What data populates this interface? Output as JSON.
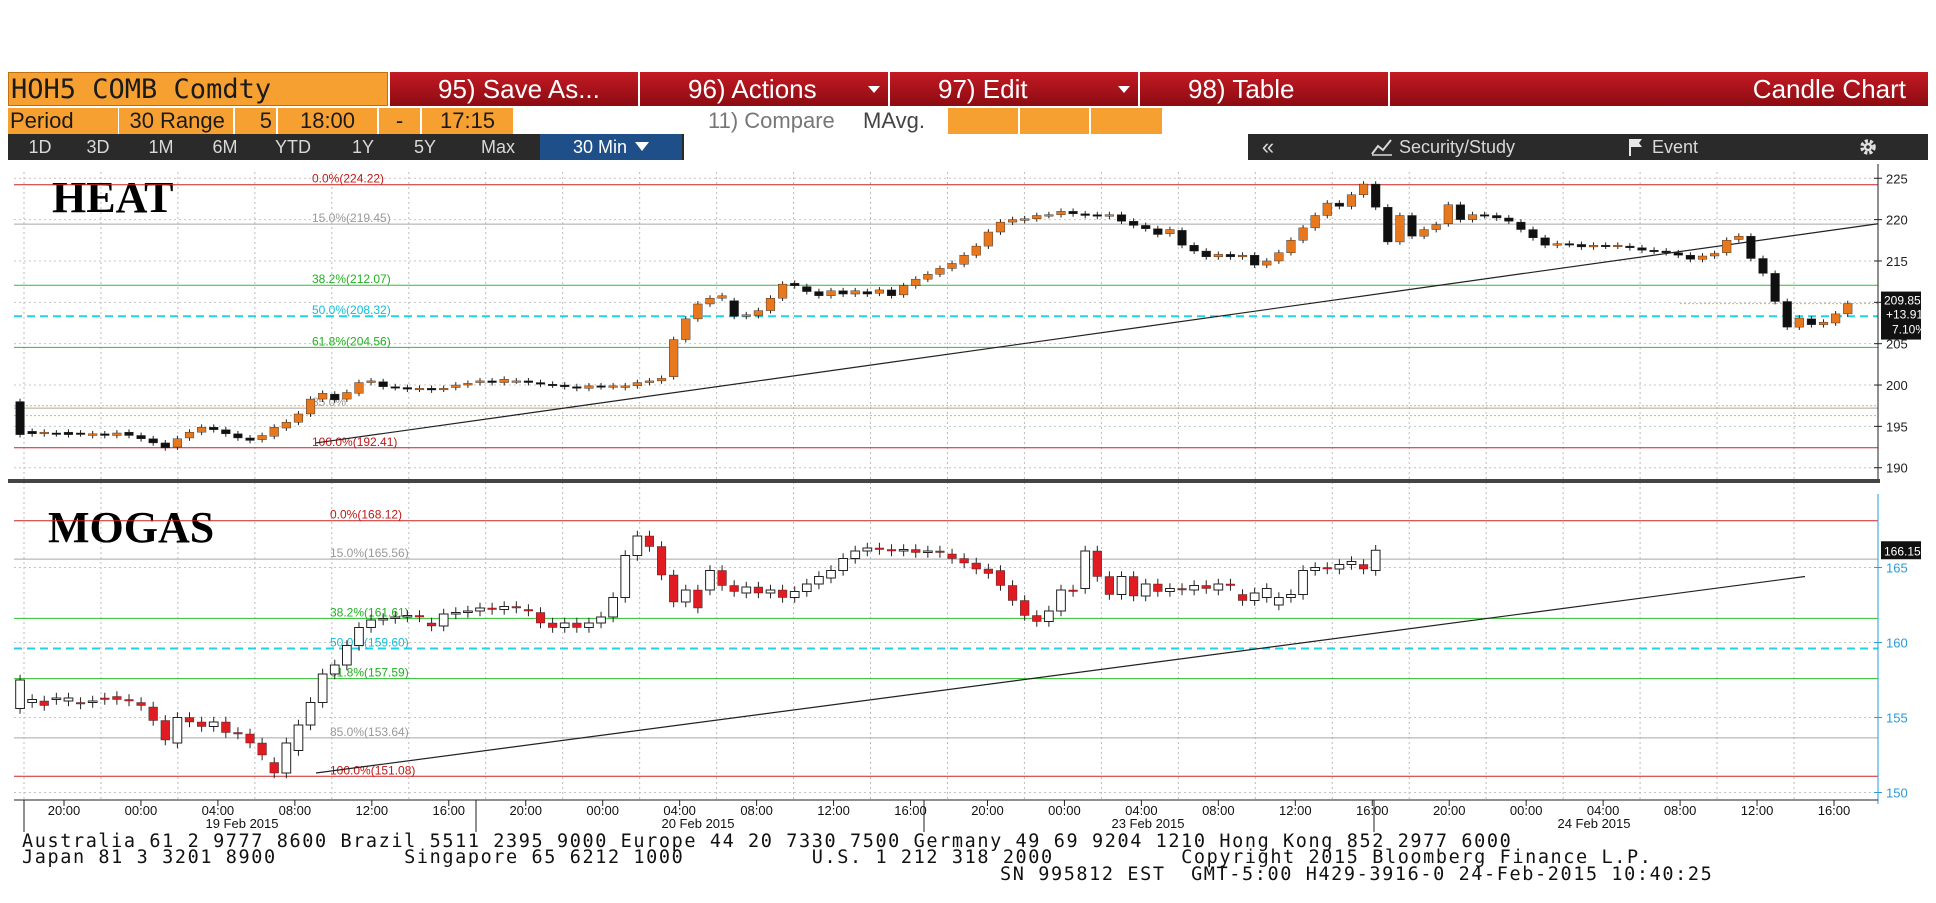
{
  "toolbar": {
    "ticker": "HOH5 COMB Comdty",
    "save_as": "95) Save As...",
    "actions": "96) Actions",
    "edit": "97) Edit",
    "table": "98) Table",
    "chart_type": "Candle Chart"
  },
  "settings": {
    "period_label": "Period",
    "period_value": "30",
    "range_label": "Range",
    "range_value": "5",
    "start_time": "18:00",
    "dash": "-",
    "end_time": "17:15",
    "compare": "11) Compare",
    "mavg": "MAvg."
  },
  "periods": [
    "1D",
    "3D",
    "1M",
    "6M",
    "YTD",
    "1Y",
    "5Y",
    "Max"
  ],
  "interval": "30 Min",
  "right_tools": {
    "collapse": "«",
    "security_study": "Security/Study",
    "event": "Event"
  },
  "colors": {
    "up": "#e8781e",
    "down": "#000000",
    "mogas_down": "#e01b22",
    "fib_mid": "#00c8e0",
    "fib_green": "#00aa00",
    "fib_red": "#cc0000"
  },
  "footer": {
    "line1": "Australia 61 2 9777 8600 Brazil 5511 2395 9000 Europe 44 20 7330 7500 Germany 49 69 9204 1210 Hong Kong 852 2977 6000",
    "line2": "Japan 81 3 3201 8900          Singapore 65 6212 1000          U.S. 1 212 318 2000          Copyright 2015 Bloomberg Finance L.P.",
    "line3": "SN 995812 EST  GMT-5:00 H429-3916-0 24-Feb-2015 10:40:25"
  },
  "chart_data": [
    {
      "type": "candlestick",
      "title": "HEAT",
      "y_ticks": [
        190,
        195,
        200,
        205,
        210,
        215,
        220,
        225
      ],
      "ylim": [
        189,
        226
      ],
      "fib_levels": [
        {
          "label": "0.0%(224.22)",
          "value": 224.22,
          "color": "red"
        },
        {
          "label": "15.0%(219.45)",
          "value": 219.45,
          "color": "gray"
        },
        {
          "label": "38.2%(212.07)",
          "value": 212.07,
          "color": "green"
        },
        {
          "label": "50.0%(208.32)",
          "value": 208.32,
          "color": "cyan"
        },
        {
          "label": "61.8%(204.56)",
          "value": 204.56,
          "color": "green"
        },
        {
          "label": "85.0%",
          "value": 197.2,
          "color": "gray"
        },
        {
          "label": "100.0%(192.41)",
          "value": 192.41,
          "color": "red"
        }
      ],
      "last": {
        "price": "209.85",
        "change": "+13.91",
        "pct": "7.10%"
      },
      "trendline": {
        "from": {
          "x": "19 Feb 2015 10:00",
          "y": 193
        },
        "to": {
          "x": "24 Feb 2015 18:00",
          "y": 219.5
        }
      },
      "candles": [
        [
          198.0,
          194.0
        ],
        [
          194.4,
          194.1
        ],
        [
          194.1,
          194.3
        ],
        [
          194.2,
          194.1
        ],
        [
          194.3,
          194.0
        ],
        [
          194.2,
          194.1
        ],
        [
          193.9,
          194.1
        ],
        [
          194.1,
          193.9
        ],
        [
          193.9,
          194.2
        ],
        [
          194.3,
          193.9
        ],
        [
          193.9,
          193.5
        ],
        [
          193.5,
          193.0
        ],
        [
          193.0,
          192.4
        ],
        [
          192.5,
          193.5
        ],
        [
          193.6,
          194.3
        ],
        [
          194.3,
          194.9
        ],
        [
          194.9,
          194.6
        ],
        [
          194.6,
          194.1
        ],
        [
          194.1,
          193.6
        ],
        [
          193.6,
          193.3
        ],
        [
          193.4,
          193.9
        ],
        [
          193.8,
          194.9
        ],
        [
          194.8,
          195.5
        ],
        [
          195.5,
          196.5
        ],
        [
          196.5,
          198.3
        ],
        [
          198.3,
          199.0
        ],
        [
          198.9,
          198.2
        ],
        [
          198.3,
          199.1
        ],
        [
          199.0,
          200.3
        ],
        [
          200.3,
          200.5
        ],
        [
          200.4,
          199.8
        ],
        [
          199.8,
          199.7
        ],
        [
          199.7,
          199.5
        ],
        [
          199.5,
          199.6
        ],
        [
          199.6,
          199.4
        ],
        [
          199.5,
          199.6
        ],
        [
          199.7,
          200.0
        ],
        [
          200.0,
          200.2
        ],
        [
          200.3,
          200.5
        ],
        [
          200.5,
          200.3
        ],
        [
          200.3,
          200.7
        ],
        [
          200.5,
          200.5
        ],
        [
          200.5,
          200.3
        ],
        [
          200.3,
          200.1
        ],
        [
          200.1,
          200.0
        ],
        [
          200.0,
          199.8
        ],
        [
          199.8,
          199.6
        ],
        [
          199.6,
          199.9
        ],
        [
          199.9,
          199.8
        ],
        [
          199.8,
          199.9
        ],
        [
          199.7,
          199.9
        ],
        [
          199.9,
          200.3
        ],
        [
          200.3,
          200.5
        ],
        [
          200.5,
          200.8
        ],
        [
          201.0,
          205.5
        ],
        [
          205.5,
          208.0
        ],
        [
          208.0,
          209.8
        ],
        [
          209.8,
          210.5
        ],
        [
          210.5,
          210.8
        ],
        [
          210.2,
          208.3
        ],
        [
          208.3,
          208.5
        ],
        [
          208.4,
          209.0
        ],
        [
          209.0,
          210.5
        ],
        [
          210.5,
          212.2
        ],
        [
          212.3,
          212.0
        ],
        [
          211.9,
          211.3
        ],
        [
          211.3,
          210.8
        ],
        [
          210.8,
          211.4
        ],
        [
          211.4,
          211.0
        ],
        [
          211.0,
          211.4
        ],
        [
          211.3,
          211.0
        ],
        [
          211.1,
          211.5
        ],
        [
          211.5,
          210.8
        ],
        [
          210.9,
          212.0
        ],
        [
          212.0,
          212.8
        ],
        [
          212.8,
          213.4
        ],
        [
          213.4,
          214.1
        ],
        [
          214.1,
          214.7
        ],
        [
          214.6,
          215.7
        ],
        [
          215.7,
          216.8
        ],
        [
          216.8,
          218.5
        ],
        [
          218.5,
          219.7
        ],
        [
          219.7,
          220.0
        ],
        [
          219.9,
          220.1
        ],
        [
          220.1,
          220.5
        ],
        [
          220.5,
          220.6
        ],
        [
          220.6,
          221.0
        ],
        [
          221.0,
          220.7
        ],
        [
          220.7,
          220.5
        ],
        [
          220.6,
          220.4
        ],
        [
          220.4,
          220.6
        ],
        [
          220.6,
          219.8
        ],
        [
          219.8,
          219.3
        ],
        [
          219.3,
          218.9
        ],
        [
          218.9,
          218.2
        ],
        [
          218.3,
          218.8
        ],
        [
          218.7,
          216.9
        ],
        [
          216.9,
          216.2
        ],
        [
          216.2,
          215.5
        ],
        [
          215.5,
          215.8
        ],
        [
          215.8,
          215.5
        ],
        [
          215.5,
          215.7
        ],
        [
          215.7,
          214.5
        ],
        [
          214.5,
          215.0
        ],
        [
          215.0,
          216.0
        ],
        [
          216.0,
          217.5
        ],
        [
          217.5,
          219.0
        ],
        [
          219.0,
          220.5
        ],
        [
          220.5,
          222.0
        ],
        [
          222.0,
          221.6
        ],
        [
          221.6,
          223.0
        ],
        [
          223.0,
          224.3
        ],
        [
          224.3,
          221.5
        ],
        [
          221.5,
          217.3
        ],
        [
          217.3,
          220.5
        ],
        [
          220.5,
          218.0
        ],
        [
          218.0,
          218.8
        ],
        [
          218.8,
          219.4
        ],
        [
          219.5,
          221.8
        ],
        [
          221.8,
          220.0
        ],
        [
          220.0,
          220.6
        ],
        [
          220.6,
          220.5
        ],
        [
          220.5,
          220.2
        ],
        [
          220.2,
          219.8
        ],
        [
          219.7,
          218.8
        ],
        [
          218.8,
          217.8
        ],
        [
          217.8,
          216.9
        ],
        [
          216.9,
          217.1
        ],
        [
          217.1,
          217.0
        ],
        [
          217.0,
          216.7
        ],
        [
          216.7,
          216.9
        ],
        [
          216.9,
          216.8
        ],
        [
          216.8,
          216.9
        ],
        [
          216.8,
          216.6
        ],
        [
          216.6,
          216.3
        ],
        [
          216.3,
          216.2
        ],
        [
          216.2,
          216.0
        ],
        [
          216.0,
          215.7
        ],
        [
          215.7,
          215.2
        ],
        [
          215.2,
          215.6
        ],
        [
          215.6,
          215.9
        ],
        [
          216.0,
          217.5
        ],
        [
          217.6,
          218.0
        ],
        [
          218.0,
          215.3
        ],
        [
          215.3,
          213.5
        ],
        [
          213.5,
          210.1
        ],
        [
          210.1,
          207.0
        ],
        [
          207.0,
          208.1
        ],
        [
          208.0,
          207.3
        ],
        [
          207.3,
          207.6
        ],
        [
          207.5,
          208.6
        ],
        [
          208.6,
          209.85
        ]
      ]
    },
    {
      "type": "candlestick",
      "title": "MOGAS",
      "y_ticks": [
        150,
        155,
        160,
        165
      ],
      "ylim": [
        149.5,
        169.5
      ],
      "fib_levels": [
        {
          "label": "0.0%(168.12)",
          "value": 168.12,
          "color": "red"
        },
        {
          "label": "15.0%(165.56)",
          "value": 165.56,
          "color": "gray"
        },
        {
          "label": "38.2%(161.61)",
          "value": 161.61,
          "color": "green"
        },
        {
          "label": "50.0%(159.60)",
          "value": 159.6,
          "color": "cyan"
        },
        {
          "label": "61.8%(157.59)",
          "value": 157.59,
          "color": "green"
        },
        {
          "label": "85.0%(153.64)",
          "value": 153.64,
          "color": "gray"
        },
        {
          "label": "100.0%(151.08)",
          "value": 151.08,
          "color": "red"
        }
      ],
      "last": {
        "price": "166.15"
      },
      "trendline": {
        "from": {
          "x": "19 Feb 2015 10:00",
          "y": 151.3
        },
        "to": {
          "x": "24 Feb 2015 18:00",
          "y": 164.4
        }
      },
      "candles": [
        [
          155.6,
          157.5
        ],
        [
          156.0,
          156.2
        ],
        [
          156.1,
          155.8
        ],
        [
          156.2,
          156.3
        ],
        [
          156.1,
          156.3
        ],
        [
          156.0,
          155.9
        ],
        [
          156.0,
          156.1
        ],
        [
          156.3,
          156.2
        ],
        [
          156.4,
          156.2
        ],
        [
          156.2,
          156.1
        ],
        [
          156.0,
          155.8
        ],
        [
          155.7,
          154.8
        ],
        [
          154.8,
          153.5
        ],
        [
          153.3,
          155.0
        ],
        [
          155.0,
          154.7
        ],
        [
          154.7,
          154.4
        ],
        [
          154.4,
          154.7
        ],
        [
          154.7,
          154.0
        ],
        [
          154.0,
          153.9
        ],
        [
          153.9,
          153.3
        ],
        [
          153.3,
          152.5
        ],
        [
          152.0,
          151.3
        ],
        [
          151.3,
          153.3
        ],
        [
          152.8,
          154.5
        ],
        [
          154.5,
          156.0
        ],
        [
          156.0,
          157.9
        ],
        [
          157.9,
          158.5
        ],
        [
          158.5,
          159.8
        ],
        [
          159.8,
          161.0
        ],
        [
          161.0,
          161.5
        ],
        [
          161.5,
          161.6
        ],
        [
          161.6,
          161.7
        ],
        [
          161.7,
          161.8
        ],
        [
          161.8,
          161.7
        ],
        [
          161.3,
          161.1
        ],
        [
          161.1,
          161.9
        ],
        [
          161.9,
          162.0
        ],
        [
          162.0,
          162.1
        ],
        [
          162.1,
          162.3
        ],
        [
          162.3,
          162.2
        ],
        [
          162.2,
          162.4
        ],
        [
          162.4,
          162.3
        ],
        [
          162.2,
          162.1
        ],
        [
          162.0,
          161.3
        ],
        [
          161.3,
          161.0
        ],
        [
          161.0,
          161.3
        ],
        [
          161.3,
          161.0
        ],
        [
          161.0,
          161.3
        ],
        [
          161.3,
          161.7
        ],
        [
          161.7,
          163.0
        ],
        [
          163.0,
          165.8
        ],
        [
          165.8,
          167.1
        ],
        [
          167.1,
          166.4
        ],
        [
          166.4,
          164.5
        ],
        [
          164.5,
          162.7
        ],
        [
          162.7,
          163.5
        ],
        [
          163.5,
          162.3
        ],
        [
          163.5,
          164.8
        ],
        [
          164.8,
          163.8
        ],
        [
          163.8,
          163.4
        ],
        [
          163.3,
          163.7
        ],
        [
          163.7,
          163.3
        ],
        [
          163.3,
          163.5
        ],
        [
          163.5,
          163.0
        ],
        [
          163.0,
          163.4
        ],
        [
          163.4,
          163.9
        ],
        [
          163.9,
          164.4
        ],
        [
          164.3,
          164.8
        ],
        [
          164.8,
          165.6
        ],
        [
          165.6,
          166.1
        ],
        [
          166.1,
          166.3
        ],
        [
          166.3,
          166.2
        ],
        [
          166.2,
          166.1
        ],
        [
          166.1,
          166.2
        ],
        [
          166.2,
          166.0
        ],
        [
          166.0,
          166.1
        ],
        [
          166.1,
          166.0
        ],
        [
          165.9,
          165.6
        ],
        [
          165.6,
          165.3
        ],
        [
          165.3,
          164.9
        ],
        [
          164.9,
          164.6
        ],
        [
          164.8,
          163.8
        ],
        [
          163.8,
          162.8
        ],
        [
          162.8,
          161.8
        ],
        [
          161.8,
          161.4
        ],
        [
          161.4,
          162.1
        ],
        [
          162.1,
          163.5
        ],
        [
          163.5,
          163.4
        ],
        [
          163.6,
          166.1
        ],
        [
          166.1,
          164.4
        ],
        [
          164.4,
          163.2
        ],
        [
          163.2,
          164.4
        ],
        [
          164.4,
          163.1
        ],
        [
          163.1,
          163.9
        ],
        [
          163.9,
          163.4
        ],
        [
          163.4,
          163.6
        ],
        [
          163.6,
          163.5
        ],
        [
          163.5,
          163.8
        ],
        [
          163.8,
          163.6
        ],
        [
          163.5,
          163.9
        ],
        [
          163.9,
          163.8
        ],
        [
          163.2,
          162.8
        ],
        [
          162.8,
          163.3
        ],
        [
          163.0,
          163.6
        ],
        [
          162.5,
          163.0
        ],
        [
          163.0,
          163.2
        ],
        [
          163.2,
          164.8
        ],
        [
          164.8,
          165.0
        ],
        [
          165.0,
          164.9
        ],
        [
          164.9,
          165.2
        ],
        [
          165.2,
          165.4
        ],
        [
          165.2,
          164.9
        ],
        [
          164.8,
          166.15
        ]
      ]
    }
  ],
  "x_axis": {
    "time_labels": [
      "20:00",
      "00:00",
      "04:00",
      "08:00",
      "12:00",
      "16:00",
      "20:00",
      "00:00",
      "04:00",
      "08:00",
      "12:00",
      "16:00",
      "20:00",
      "00:00",
      "04:00",
      "08:00",
      "12:00",
      "16:00",
      "20:00",
      "00:00",
      "04:00",
      "08:00",
      "12:00",
      "16:00"
    ],
    "date_labels": [
      "19 Feb 2015",
      "20 Feb 2015",
      "23 Feb 2015",
      "24 Feb 2015"
    ]
  }
}
